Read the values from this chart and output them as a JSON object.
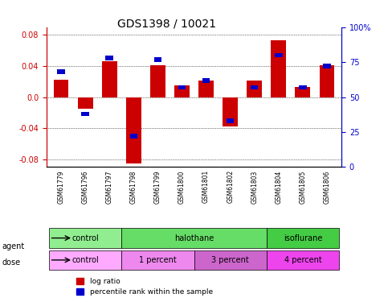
{
  "title": "GDS1398 / 10021",
  "samples": [
    "GSM61779",
    "GSM61796",
    "GSM61797",
    "GSM61798",
    "GSM61799",
    "GSM61800",
    "GSM61801",
    "GSM61802",
    "GSM61803",
    "GSM61804",
    "GSM61805",
    "GSM61806"
  ],
  "log_ratio": [
    0.022,
    -0.015,
    0.046,
    -0.085,
    0.041,
    0.015,
    0.021,
    -0.038,
    0.021,
    0.073,
    0.013,
    0.041
  ],
  "percentile_rank": [
    68,
    38,
    78,
    22,
    77,
    57,
    62,
    33,
    57,
    80,
    57,
    72
  ],
  "agent_groups": [
    {
      "label": "control",
      "start": 0,
      "end": 3,
      "color": "#90EE90"
    },
    {
      "label": "halothane",
      "start": 3,
      "end": 9,
      "color": "#66DD66"
    },
    {
      "label": "isoflurane",
      "start": 9,
      "end": 12,
      "color": "#44CC44"
    }
  ],
  "dose_groups": [
    {
      "label": "control",
      "start": 0,
      "end": 3,
      "color": "#FFAAFF"
    },
    {
      "label": "1 percent",
      "start": 3,
      "end": 6,
      "color": "#EE88EE"
    },
    {
      "label": "3 percent",
      "start": 6,
      "end": 9,
      "color": "#CC66CC"
    },
    {
      "label": "4 percent",
      "start": 9,
      "end": 12,
      "color": "#EE44EE"
    }
  ],
  "ylim": [
    -0.09,
    0.09
  ],
  "yticks_left": [
    -0.08,
    -0.04,
    0.0,
    0.04,
    0.08
  ],
  "yticks_right": [
    0,
    25,
    50,
    75,
    100
  ],
  "bar_color_red": "#CC0000",
  "bar_color_blue": "#0000CC",
  "bar_width": 0.35,
  "grid_color": "#000000",
  "background_color": "#ffffff",
  "plot_bg": "#ffffff",
  "label_color_red": "#CC0000",
  "label_color_blue": "#0000CC",
  "legend_red": "log ratio",
  "legend_blue": "percentile rank within the sample"
}
